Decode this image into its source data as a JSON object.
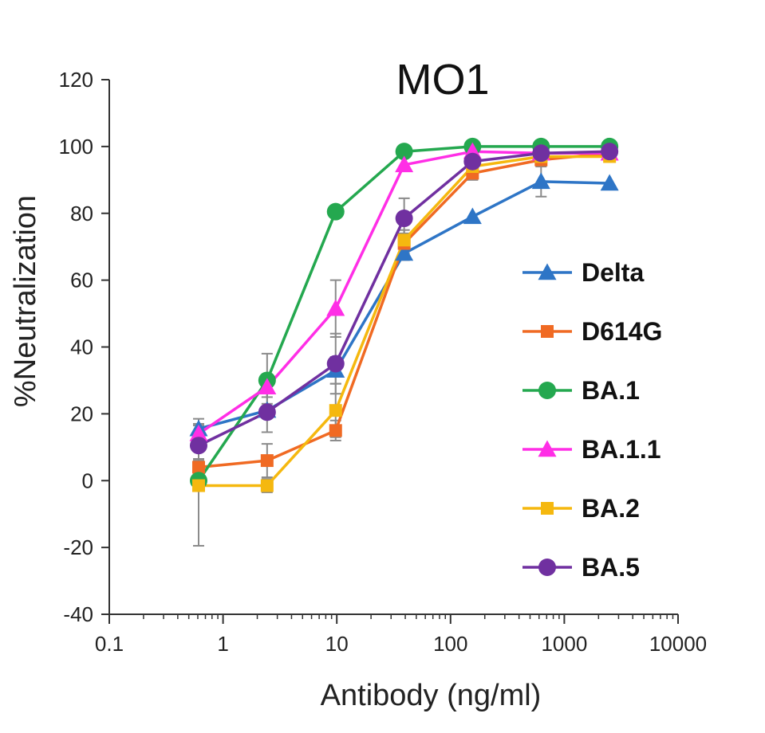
{
  "chart_data": {
    "type": "line",
    "title": "MO1",
    "xlabel": "Antibody (ng/ml)",
    "ylabel": "%Neutralization",
    "x_scale": "log",
    "xlim": [
      0.1,
      10000
    ],
    "ylim": [
      -40,
      120
    ],
    "x_ticks": [
      "0.1",
      "1",
      "10",
      "100",
      "1000",
      "10000"
    ],
    "y_ticks": [
      "-40",
      "-20",
      "0",
      "20",
      "40",
      "60",
      "80",
      "100",
      "120"
    ],
    "legend_position": "right",
    "x": [
      0.61,
      2.44,
      9.77,
      39.1,
      156,
      625,
      2500
    ],
    "series": [
      {
        "name": "Delta",
        "color": "#2e75c6",
        "marker": "triangle",
        "values": [
          15.5,
          21,
          33,
          68,
          79,
          89.5,
          89
        ],
        "errors": [
          3,
          2,
          4,
          2,
          1,
          4.5,
          1
        ]
      },
      {
        "name": "D614G",
        "color": "#f06a23",
        "marker": "square",
        "values": [
          4,
          6,
          15,
          71,
          92,
          96,
          98
        ],
        "errors": [
          2,
          5,
          3,
          3,
          2,
          1,
          1
        ]
      },
      {
        "name": "BA.1",
        "color": "#24a84f",
        "marker": "circle",
        "values": [
          0,
          30,
          80.5,
          98.5,
          100,
          100,
          100
        ],
        "errors": [
          2,
          8,
          1,
          1,
          0.5,
          0.5,
          0.5
        ]
      },
      {
        "name": "BA.1.1",
        "color": "#ff2ee6",
        "marker": "triangle",
        "values": [
          14,
          28,
          51.5,
          94.5,
          98.5,
          98,
          98
        ],
        "errors": [
          3,
          3,
          8.5,
          1,
          1,
          1,
          1
        ]
      },
      {
        "name": "BA.2",
        "color": "#f5b80f",
        "marker": "square",
        "values": [
          -1.5,
          -1.5,
          21,
          72,
          94,
          97,
          97
        ],
        "errors": [
          18,
          2,
          8,
          3,
          2,
          1,
          1
        ]
      },
      {
        "name": "BA.5",
        "color": "#7030a0",
        "marker": "circle",
        "values": [
          10.5,
          20.5,
          35,
          78.5,
          95.5,
          98,
          98.5
        ],
        "errors": [
          4,
          6,
          9,
          6,
          2,
          1,
          1
        ]
      }
    ]
  }
}
